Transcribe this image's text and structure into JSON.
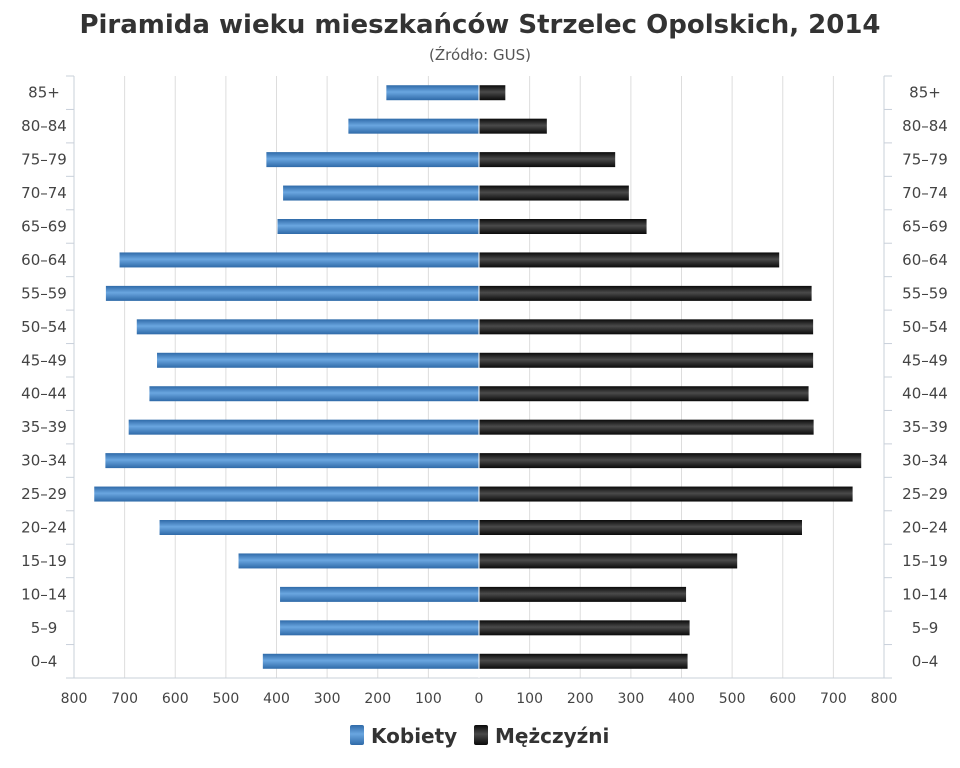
{
  "chart_data": {
    "type": "bar",
    "orientation": "horizontal-pyramid",
    "title": "Piramida wieku mieszkańców Strzelec Opolskich, 2014",
    "subtitle": "(Źródło: GUS)",
    "categories": [
      "85+",
      "80–84",
      "75–79",
      "70–74",
      "65–69",
      "60–64",
      "55–59",
      "50–54",
      "45–49",
      "40–44",
      "35–39",
      "30–34",
      "25–29",
      "20–24",
      "15–19",
      "10–14",
      "5–9",
      "0–4"
    ],
    "series": [
      {
        "name": "Kobiety",
        "side": "left",
        "color": "#4a86c5",
        "values": [
          183,
          258,
          420,
          387,
          398,
          710,
          737,
          676,
          636,
          651,
          692,
          738,
          760,
          631,
          475,
          393,
          393,
          427
        ]
      },
      {
        "name": "Mężczyźni",
        "side": "right",
        "color": "#222222",
        "values": [
          52,
          134,
          269,
          296,
          331,
          593,
          657,
          660,
          660,
          651,
          661,
          755,
          738,
          638,
          510,
          409,
          416,
          412
        ]
      }
    ],
    "xlim": [
      -800,
      800
    ],
    "x_ticks": [
      "800",
      "700",
      "600",
      "500",
      "400",
      "300",
      "200",
      "100",
      "0",
      "100",
      "200",
      "300",
      "400",
      "500",
      "600",
      "700",
      "800"
    ],
    "grid": true,
    "legend_position": "bottom-center"
  }
}
